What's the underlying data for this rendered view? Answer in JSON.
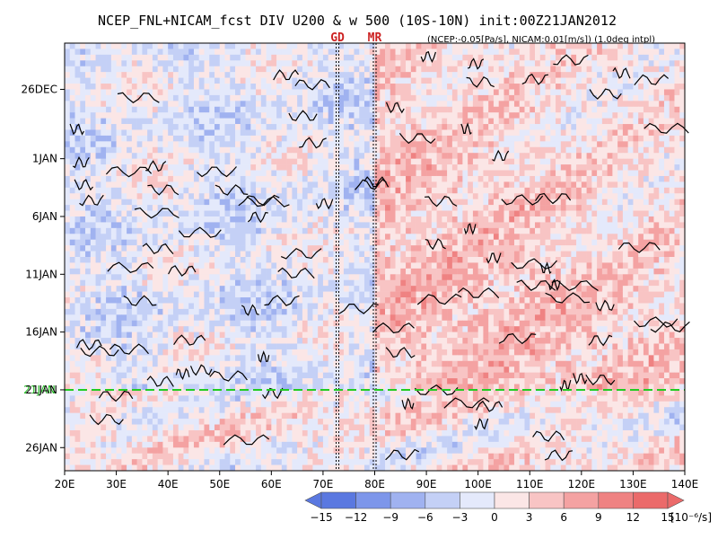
{
  "title": "NCEP_FNL+NICAM_fcst DIV U200 & w 500 (10S-10N) init:00Z21JAN2012",
  "subtitle": "(NCEP:-0.05[Pa/s], NICAM:0.01[m/s]) (1.0deg intpl)",
  "markers": [
    {
      "label": "GD",
      "lon": 72.8
    },
    {
      "label": "MR",
      "lon": 80.0
    }
  ],
  "init_label": "21JAN",
  "colorbar": {
    "unit": "[10⁻⁶/s]",
    "ticks": [
      "−15",
      "−12",
      "−9",
      "−6",
      "−3",
      "0",
      "3",
      "6",
      "9",
      "12",
      "15"
    ],
    "colors": [
      "#5a78e0",
      "#7d96ea",
      "#a0b2f0",
      "#c4d0f6",
      "#e4e9fb",
      "#fbe6e6",
      "#f8c4c4",
      "#f4a2a2",
      "#ef8282",
      "#eb6a6a"
    ]
  },
  "colors": {
    "init_line": "#22cc22",
    "marker_line": "#000000",
    "contour": "#000000"
  },
  "chart_data": {
    "type": "heatmap",
    "title": "NCEP_FNL+NICAM_fcst DIV U200 & w 500 (10S-10N) init:00Z21JAN2012",
    "xlabel": "",
    "ylabel": "",
    "x_range": [
      20,
      140
    ],
    "x_ticks": [
      "20E",
      "30E",
      "40E",
      "50E",
      "60E",
      "70E",
      "80E",
      "90E",
      "100E",
      "110E",
      "120E",
      "130E",
      "140E"
    ],
    "y_ticks": [
      {
        "label": "26DEC",
        "day": 0
      },
      {
        "label": "1JAN",
        "day": 6
      },
      {
        "label": "6JAN",
        "day": 11
      },
      {
        "label": "11JAN",
        "day": 16
      },
      {
        "label": "16JAN",
        "day": 21
      },
      {
        "label": "21JAN",
        "day": 26
      },
      {
        "label": "26JAN",
        "day": 31
      }
    ],
    "y_range_days": [
      -4,
      33
    ],
    "init_day": 26,
    "value_range": [
      -15,
      15
    ],
    "value_levels": [
      -15,
      -12,
      -9,
      -6,
      -3,
      0,
      3,
      6,
      9,
      12,
      15
    ],
    "field": "DIV U200 (shaded) & w 500 (contours)",
    "pattern_regions": [
      {
        "lon_range": [
          20,
          80
        ],
        "day_range": [
          -4,
          26
        ],
        "tendency": "mixed, mostly negative (blue)"
      },
      {
        "lon_range": [
          80,
          140
        ],
        "day_range": [
          -4,
          26
        ],
        "tendency": "positive (red)"
      },
      {
        "lon_range": [
          20,
          140
        ],
        "day_range": [
          26,
          33
        ],
        "tendency": "mixed"
      }
    ]
  }
}
